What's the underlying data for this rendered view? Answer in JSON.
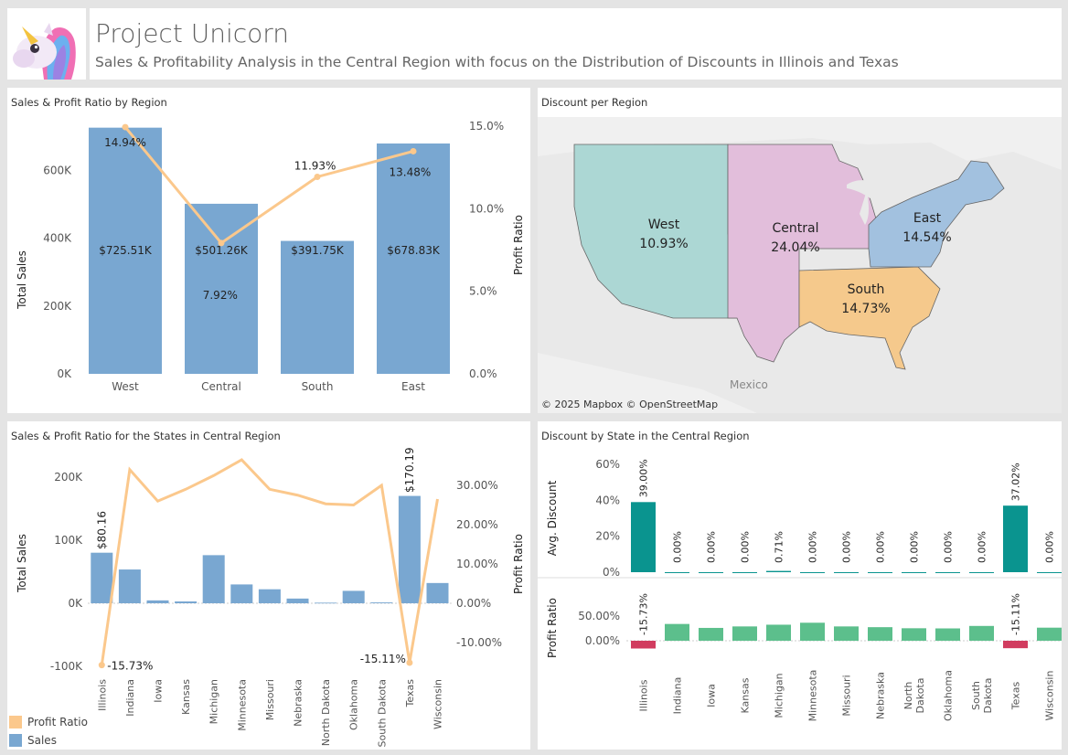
{
  "header": {
    "title": "Project Unicorn",
    "subtitle": "Sales & Profitability Analysis in the Central Region with focus on the Distribution of Discounts in Illinois and Texas"
  },
  "panels": {
    "region_chart_title": "Sales & Profit Ratio by Region",
    "map_title": "Discount per Region",
    "states_chart_title": "Sales & Profit Ratio for the States in Central Region",
    "discount_state_title": "Discount by State in the Central Region"
  },
  "colors": {
    "bar": "#79a7d1",
    "line": "#fbc88c",
    "teal": "#0a948f",
    "green": "#5cbf8c",
    "red": "#d13c5f"
  },
  "map": {
    "attribution": "© 2025 Mapbox  © OpenStreetMap",
    "country_label": "Mexico",
    "regions": [
      {
        "name": "West",
        "discount": "10.93%",
        "color": "#acd7d4"
      },
      {
        "name": "Central",
        "discount": "24.04%",
        "color": "#e2bedb"
      },
      {
        "name": "South",
        "discount": "14.73%",
        "color": "#f5c98c"
      },
      {
        "name": "East",
        "discount": "14.54%",
        "color": "#a2c1df"
      }
    ]
  },
  "legend": {
    "profit_ratio": "Profit Ratio",
    "sales": "Sales"
  },
  "chart_data": [
    {
      "type": "bar",
      "title": "Sales & Profit Ratio by Region",
      "categories": [
        "West",
        "Central",
        "South",
        "East"
      ],
      "series": [
        {
          "name": "Sales",
          "values": [
            725510,
            501260,
            391750,
            678830
          ],
          "labels": [
            "$725.51K",
            "$501.26K",
            "$391.75K",
            "$678.83K"
          ]
        },
        {
          "name": "Profit Ratio",
          "values": [
            14.94,
            7.92,
            11.93,
            13.48
          ],
          "labels": [
            "14.94%",
            "7.92%",
            "11.93%",
            "13.48%"
          ]
        }
      ],
      "ylabel": "Total Sales",
      "y2label": "Profit Ratio",
      "ylim": [
        0,
        730000
      ],
      "y2lim": [
        0,
        15
      ],
      "yticks": [
        "0K",
        "200K",
        "400K",
        "600K"
      ],
      "y2ticks": [
        "0.0%",
        "5.0%",
        "10.0%",
        "15.0%"
      ]
    },
    {
      "type": "bar",
      "title": "Sales & Profit Ratio for the States in Central Region",
      "categories": [
        "Illinois",
        "Indiana",
        "Iowa",
        "Kansas",
        "Michigan",
        "Minnesota",
        "Missouri",
        "Nebraska",
        "North Dakota",
        "Oklahoma",
        "South Dakota",
        "Texas",
        "Wisconsin"
      ],
      "series": [
        {
          "name": "Sales",
          "values": [
            80160,
            53550,
            4580,
            2910,
            76270,
            29860,
            22210,
            7460,
            920,
            19680,
            1320,
            170190,
            32110
          ]
        },
        {
          "name": "Profit Ratio",
          "values": [
            -15.73,
            34.0,
            26.0,
            29.0,
            32.5,
            36.5,
            29.0,
            27.5,
            25.3,
            25.0,
            30.0,
            -15.11,
            26.5
          ]
        }
      ],
      "labels": {
        "Illinois_sales": "$80.16",
        "Texas_sales": "$170.19",
        "Illinois_pr": "-15.73%",
        "Texas_pr": "-15.11%"
      },
      "ylabel": "Total Sales",
      "y2label": "Profit Ratio",
      "ylim": [
        -100000,
        200000
      ],
      "y2lim": [
        -10,
        30
      ],
      "yticks": [
        "-100K",
        "0K",
        "100K",
        "200K"
      ],
      "y2ticks": [
        "-10.00%",
        "0.00%",
        "10.00%",
        "20.00%",
        "30.00%"
      ]
    },
    {
      "type": "bar",
      "title": "Discount by State in the Central Region",
      "categories": [
        "Illinois",
        "Indiana",
        "Iowa",
        "Kansas",
        "Michigan",
        "Minnesota",
        "Missouri",
        "Nebraska",
        "North Dakota",
        "Oklahoma",
        "South Dakota",
        "Texas",
        "Wisconsin"
      ],
      "category_lines": [
        [
          "Illinois"
        ],
        [
          "Indiana"
        ],
        [
          "Iowa"
        ],
        [
          "Kansas"
        ],
        [
          "Michigan"
        ],
        [
          "Minnesota"
        ],
        [
          "Missouri"
        ],
        [
          "Nebraska"
        ],
        [
          "North",
          "Dakota"
        ],
        [
          "Oklahoma"
        ],
        [
          "South",
          "Dakota"
        ],
        [
          "Texas"
        ],
        [
          "Wisconsin"
        ]
      ],
      "series": [
        {
          "name": "Avg. Discount",
          "values": [
            39.0,
            0,
            0,
            0,
            0.71,
            0,
            0,
            0,
            0,
            0,
            0,
            37.02,
            0
          ],
          "labels": [
            "39.00%",
            "0.00%",
            "0.00%",
            "0.00%",
            "0.71%",
            "0.00%",
            "0.00%",
            "0.00%",
            "0.00%",
            "0.00%",
            "0.00%",
            "37.02%",
            "0.00%"
          ]
        },
        {
          "name": "Profit Ratio",
          "values": [
            -15.73,
            34.0,
            26.0,
            29.0,
            32.5,
            36.5,
            29.0,
            27.5,
            25.3,
            25.0,
            30.0,
            -15.11,
            26.5
          ],
          "labels": [
            "-15.73%",
            "",
            "",
            "",
            "",
            "",
            "",
            "",
            "",
            "",
            "",
            "-15.11%",
            ""
          ]
        }
      ],
      "discount_axis": {
        "label": "Avg. Discount",
        "ticks": [
          "0%",
          "20%",
          "40%",
          "60%"
        ],
        "lim": [
          0,
          60
        ]
      },
      "profit_axis": {
        "label": "Profit Ratio",
        "ticks": [
          "0.00%",
          "50.00%"
        ],
        "lim": [
          -20,
          50
        ]
      }
    }
  ]
}
